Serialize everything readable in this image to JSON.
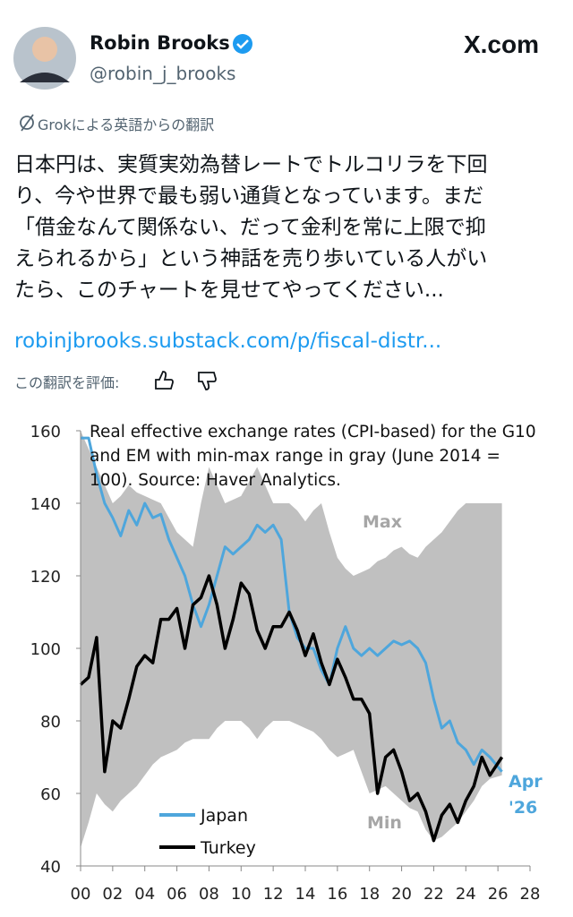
{
  "header": {
    "name": "Robin Brooks",
    "handle": "@robin_j_brooks",
    "brand": "X.com"
  },
  "translation_note": "Grokによる英語からの翻訳",
  "body": {
    "lines": [
      "日本円は、実質実効為替レートでトルコリラを下回",
      "り、今や世界で最も弱い通貨となっています。まだ",
      "「借金なんて関係ない、だって金利を常に上限で抑",
      "えられるから」という神話を売り歩いている人がい",
      "たら、このチャートを見せてやってください..."
    ],
    "link": "robinjbrooks.substack.com/p/fiscal-distr..."
  },
  "rate_prompt": "この翻訳を評価:",
  "chart_data": {
    "type": "line",
    "title": "Real effective exchange rates (CPI-based) for the G10 and EM with min-max range in gray (June 2014 = 100). Source: Haver Analytics.",
    "x": [
      2000,
      2000.5,
      2001,
      2001.5,
      2002,
      2002.5,
      2003,
      2003.5,
      2004,
      2004.5,
      2005,
      2005.5,
      2006,
      2006.5,
      2007,
      2007.5,
      2008,
      2008.5,
      2009,
      2009.5,
      2010,
      2010.5,
      2011,
      2011.5,
      2012,
      2012.5,
      2013,
      2013.5,
      2014,
      2014.5,
      2015,
      2015.5,
      2016,
      2016.5,
      2017,
      2017.5,
      2018,
      2018.5,
      2019,
      2019.5,
      2020,
      2020.5,
      2021,
      2021.5,
      2022,
      2022.5,
      2023,
      2023.5,
      2024,
      2024.5,
      2025,
      2025.5,
      2026.25
    ],
    "series": [
      {
        "name": "Japan",
        "color": "#4ea6dc",
        "values": [
          158,
          158,
          148,
          140,
          136,
          131,
          138,
          134,
          140,
          136,
          137,
          130,
          125,
          120,
          112,
          106,
          112,
          120,
          128,
          126,
          128,
          130,
          134,
          132,
          134,
          130,
          110,
          103,
          100,
          100,
          94,
          90,
          100,
          106,
          100,
          98,
          100,
          98,
          100,
          102,
          101,
          102,
          100,
          96,
          86,
          78,
          80,
          74,
          72,
          68,
          72,
          70,
          66
        ]
      },
      {
        "name": "Turkey",
        "color": "#000000",
        "values": [
          90,
          92,
          103,
          66,
          80,
          78,
          86,
          95,
          98,
          96,
          108,
          108,
          111,
          100,
          112,
          114,
          120,
          112,
          100,
          108,
          118,
          115,
          105,
          100,
          106,
          106,
          110,
          105,
          98,
          104,
          96,
          90,
          97,
          92,
          86,
          86,
          82,
          60,
          70,
          72,
          66,
          58,
          60,
          55,
          47,
          54,
          57,
          52,
          58,
          62,
          70,
          65,
          70
        ]
      },
      {
        "name": "Max",
        "color": "#c0c0c0",
        "values": [
          160,
          155,
          150,
          145,
          140,
          142,
          145,
          143,
          142,
          141,
          140,
          136,
          132,
          130,
          128,
          140,
          150,
          145,
          140,
          141,
          142,
          146,
          150,
          145,
          140,
          140,
          140,
          138,
          135,
          138,
          140,
          132,
          125,
          122,
          120,
          121,
          122,
          124,
          125,
          127,
          128,
          126,
          125,
          128,
          130,
          132,
          135,
          138,
          140,
          140,
          140,
          140,
          140
        ]
      },
      {
        "name": "Min",
        "color": "#c0c0c0",
        "values": [
          45,
          52,
          60,
          57,
          55,
          58,
          60,
          62,
          65,
          68,
          70,
          71,
          72,
          74,
          75,
          75,
          75,
          78,
          80,
          80,
          80,
          78,
          75,
          78,
          80,
          80,
          80,
          79,
          78,
          77,
          75,
          72,
          70,
          71,
          72,
          66,
          60,
          61,
          62,
          60,
          58,
          56,
          55,
          50,
          47,
          48,
          50,
          52,
          55,
          58,
          62,
          64,
          65
        ]
      }
    ],
    "annotations": [
      "Apr",
      "'26"
    ],
    "xlim": [
      2000,
      2028
    ],
    "xticks": [
      {
        "value": 2000,
        "label": "00"
      },
      {
        "value": 2002,
        "label": "02"
      },
      {
        "value": 2004,
        "label": "04"
      },
      {
        "value": 2006,
        "label": "06"
      },
      {
        "value": 2008,
        "label": "08"
      },
      {
        "value": 2010,
        "label": "10"
      },
      {
        "value": 2012,
        "label": "12"
      },
      {
        "value": 2014,
        "label": "14"
      },
      {
        "value": 2016,
        "label": "16"
      },
      {
        "value": 2018,
        "label": "18"
      },
      {
        "value": 2020,
        "label": "20"
      },
      {
        "value": 2022,
        "label": "22"
      },
      {
        "value": 2024,
        "label": "24"
      },
      {
        "value": 2026,
        "label": "26"
      },
      {
        "value": 2028,
        "label": "28"
      }
    ],
    "ylim": [
      40,
      160
    ],
    "yticks": [
      40,
      60,
      80,
      100,
      120,
      140,
      160
    ]
  }
}
